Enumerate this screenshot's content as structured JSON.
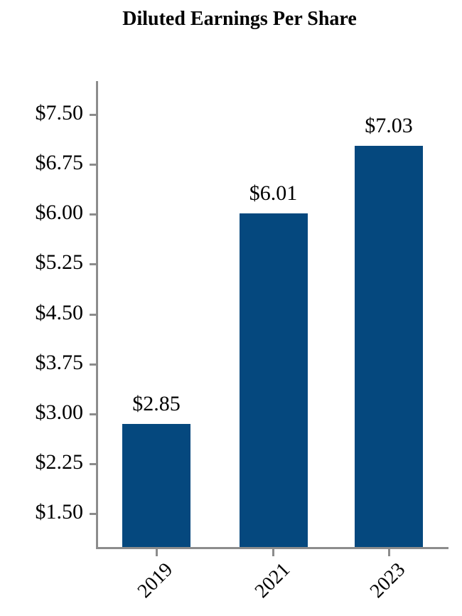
{
  "page": {
    "background": "#FFFFFF"
  },
  "chart_data": {
    "type": "bar",
    "title": "Diluted Earnings Per Share",
    "categories": [
      "2019",
      "2021",
      "2023"
    ],
    "values": [
      2.85,
      6.01,
      7.03
    ],
    "bar_value_labels": [
      "$2.85",
      "$6.01",
      "$7.03"
    ],
    "xlabel": "",
    "ylabel": "",
    "y_axis": {
      "tick_values": [
        7.5,
        6.75,
        6.0,
        5.25,
        4.5,
        3.75,
        3.0,
        2.25,
        1.5
      ],
      "tick_labels": [
        "$7.50",
        "$6.75",
        "$6.00",
        "$5.25",
        "$4.50",
        "$3.75",
        "$3.00",
        "$2.25",
        "$1.50"
      ],
      "tick_step": 0.75,
      "labeled_range": [
        1.5,
        7.5
      ]
    },
    "legend": "none",
    "grid": "off",
    "colors": {
      "bar": "#05487E",
      "axis": "#8C8C8C",
      "text": "#000000"
    }
  }
}
